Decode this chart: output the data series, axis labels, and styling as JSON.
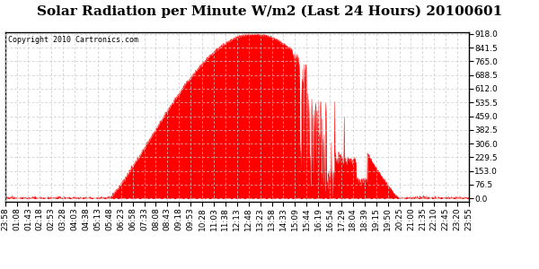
{
  "title": "Solar Radiation per Minute W/m2 (Last 24 Hours) 20100601",
  "copyright": "Copyright 2010 Cartronics.com",
  "bg_color": "#ffffff",
  "plot_bg_color": "#ffffff",
  "fill_color": "#ff0000",
  "line_color": "#ff0000",
  "dashed_line_color": "#ff0000",
  "grid_color": "#c8c8c8",
  "border_color": "#000000",
  "y_ticks": [
    0.0,
    76.5,
    153.0,
    229.5,
    306.0,
    382.5,
    459.0,
    535.5,
    612.0,
    688.5,
    765.0,
    841.5,
    918.0
  ],
  "y_min": 0.0,
  "y_max": 918.0,
  "x_labels": [
    "23:58",
    "01:08",
    "01:43",
    "02:18",
    "02:53",
    "03:28",
    "04:03",
    "04:38",
    "05:13",
    "05:48",
    "06:23",
    "06:58",
    "07:33",
    "08:08",
    "08:43",
    "09:18",
    "09:53",
    "10:28",
    "11:03",
    "11:38",
    "12:13",
    "12:48",
    "13:23",
    "13:58",
    "14:33",
    "15:09",
    "15:44",
    "16:19",
    "16:54",
    "17:29",
    "18:04",
    "18:39",
    "19:15",
    "19:50",
    "20:25",
    "21:00",
    "21:35",
    "22:10",
    "22:45",
    "23:20",
    "23:55"
  ],
  "title_fontsize": 11,
  "copyright_fontsize": 6,
  "tick_fontsize": 6.5
}
